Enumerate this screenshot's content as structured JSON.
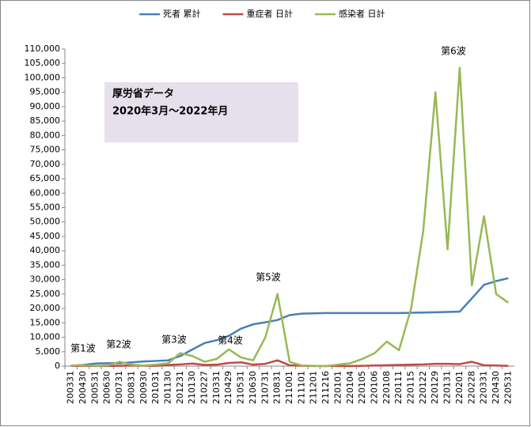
{
  "chart_data": {
    "type": "line",
    "text_box": [
      "厚労省データ",
      "2020年3月～2022年月"
    ],
    "annotations": [
      "第1波",
      "第2波",
      "第3波",
      "第4波",
      "第5波",
      "第6波"
    ],
    "categories": [
      "200331",
      "200430",
      "200531",
      "200630",
      "200731",
      "200831",
      "200930",
      "201031",
      "201130",
      "201231",
      "210130",
      "210227",
      "210331",
      "210429",
      "210531",
      "210630",
      "210731",
      "210831",
      "211001",
      "211101",
      "211201",
      "211216",
      "220101",
      "220104",
      "220105",
      "220106",
      "220108",
      "220111",
      "220115",
      "220122",
      "220129",
      "220131",
      "220201",
      "220228",
      "220331",
      "220430",
      "220531"
    ],
    "series": [
      {
        "name": "死者 累計",
        "color": "#4a7ebb",
        "values": [
          100,
          400,
          900,
          1000,
          1000,
          1300,
          1600,
          1800,
          2000,
          3500,
          5800,
          8000,
          9000,
          10500,
          13000,
          14500,
          15200,
          16000,
          17700,
          18200,
          18300,
          18400,
          18400,
          18400,
          18400,
          18400,
          18400,
          18400,
          18500,
          18600,
          18700,
          18800,
          18900,
          23500,
          28200,
          29500,
          30500
        ]
      },
      {
        "name": "重症者 日計",
        "color": "#be4b48",
        "values": [
          60,
          100,
          50,
          30,
          100,
          200,
          150,
          100,
          400,
          600,
          900,
          400,
          500,
          1100,
          1300,
          500,
          800,
          2000,
          300,
          100,
          50,
          50,
          50,
          50,
          100,
          200,
          300,
          400,
          500,
          600,
          800,
          800,
          700,
          1500,
          300,
          200,
          100
        ]
      },
      {
        "name": "感染者 日計",
        "color": "#98b954",
        "values": [
          200,
          300,
          100,
          200,
          1500,
          500,
          200,
          500,
          1000,
          4500,
          3500,
          1500,
          2500,
          5800,
          3000,
          2000,
          10000,
          25000,
          1500,
          200,
          100,
          0,
          500,
          1000,
          2500,
          4500,
          8500,
          5500,
          20000,
          47000,
          95000,
          40500,
          103500,
          28000,
          52000,
          25000,
          22000
        ]
      }
    ],
    "ylim": [
      0,
      110000
    ],
    "yticks": [
      0,
      {
        "value": 5000,
        "label": "5,000"
      },
      {
        "value": 10000,
        "label": "10,000"
      },
      {
        "value": 15000,
        "label": "15,000"
      },
      {
        "value": 20000,
        "label": "20,000"
      },
      {
        "value": 25000,
        "label": "25,000"
      },
      {
        "value": 30000,
        "label": "30,000"
      },
      {
        "value": 35000,
        "label": "35,000"
      },
      {
        "value": 40000,
        "label": "40,000"
      },
      {
        "value": 45000,
        "label": "45,000"
      },
      {
        "value": 50000,
        "label": "50,000"
      },
      {
        "value": 55000,
        "label": "55,000"
      },
      {
        "value": 60000,
        "label": "60,000"
      },
      {
        "value": 65000,
        "label": "65,000"
      },
      {
        "value": 70000,
        "label": "70,000"
      },
      {
        "value": 75000,
        "label": "75,000"
      },
      {
        "value": 80000,
        "label": "80,000"
      },
      {
        "value": 85000,
        "label": "85,000"
      },
      {
        "value": 90000,
        "label": "90,000"
      },
      {
        "value": 95000,
        "label": "95,000"
      },
      {
        "value": 100000,
        "label": "100,000"
      },
      {
        "value": 105000,
        "label": "105,000"
      },
      {
        "value": 110000,
        "label": "110,000"
      }
    ],
    "legend": "top",
    "grid": false
  }
}
